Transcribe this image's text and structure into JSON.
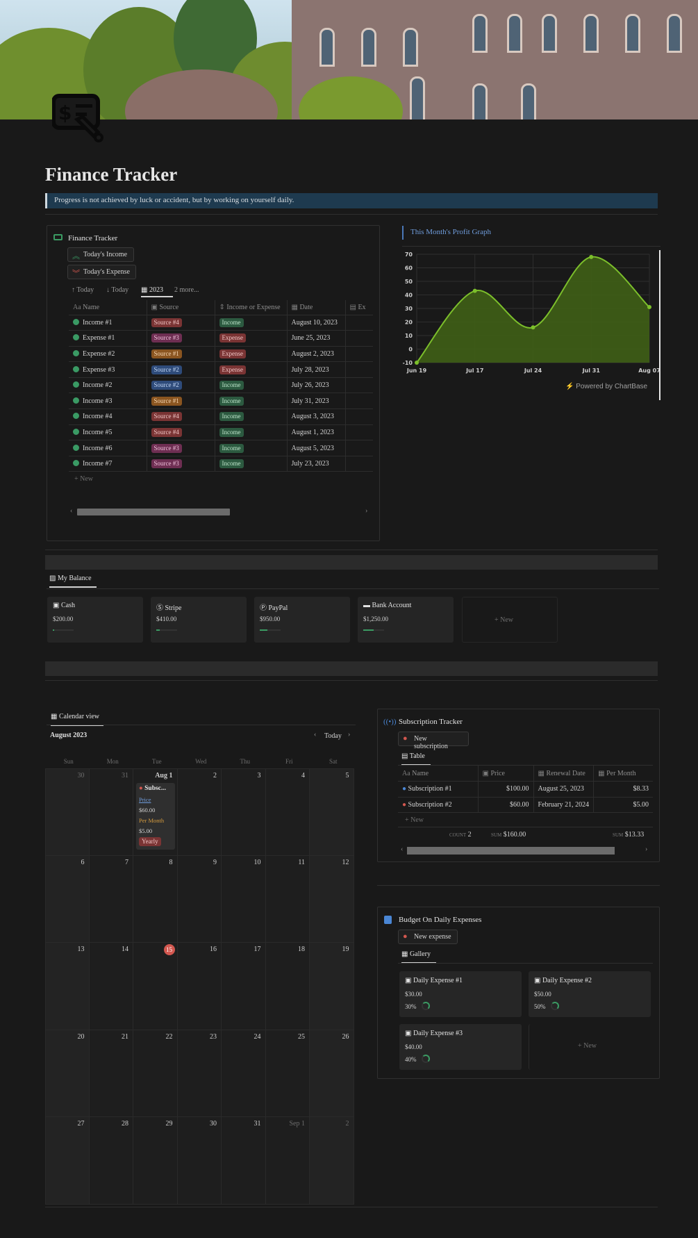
{
  "page": {
    "title": "Finance Tracker",
    "quote": "Progress is not achieved by luck or accident, but by working on yourself daily."
  },
  "finance": {
    "title": "Finance Tracker",
    "buttons": {
      "income": "Today's Income",
      "expense": "Today's Expense"
    },
    "views": {
      "sort1": "Today",
      "sort2": "Today",
      "year": "2023",
      "more": "2 more..."
    },
    "columns": [
      "Name",
      "Source",
      "Income or Expense",
      "Date",
      "Ex"
    ],
    "rows": [
      {
        "name": "Income #1",
        "source": "Source #4",
        "type": "Income",
        "date": "August 10, 2023"
      },
      {
        "name": "Expense #1",
        "source": "Source #3",
        "type": "Expense",
        "date": "June 25, 2023"
      },
      {
        "name": "Expense #2",
        "source": "Source #1",
        "type": "Expense",
        "date": "August 2, 2023"
      },
      {
        "name": "Expense #3",
        "source": "Source #2",
        "type": "Expense",
        "date": "July 28, 2023"
      },
      {
        "name": "Income #2",
        "source": "Source #2",
        "type": "Income",
        "date": "July 26, 2023"
      },
      {
        "name": "Income #3",
        "source": "Source #1",
        "type": "Income",
        "date": "July 31, 2023"
      },
      {
        "name": "Income #4",
        "source": "Source #4",
        "type": "Income",
        "date": "August 3, 2023"
      },
      {
        "name": "Income #5",
        "source": "Source #4",
        "type": "Income",
        "date": "August 1, 2023"
      },
      {
        "name": "Income #6",
        "source": "Source #3",
        "type": "Income",
        "date": "August 5, 2023"
      },
      {
        "name": "Income #7",
        "source": "Source #3",
        "type": "Income",
        "date": "July 23, 2023"
      }
    ],
    "new_label": "New"
  },
  "graph": {
    "title": "This Month's Profit Graph",
    "powered": "Powered by ChartBase"
  },
  "chart_data": {
    "type": "area",
    "x": [
      "Jun 19",
      "Jul 17",
      "Jul 24",
      "Jul 31",
      "Aug 07"
    ],
    "values": [
      -10,
      43,
      16,
      68,
      31
    ],
    "ylim": [
      -10,
      70
    ],
    "yticks": [
      70,
      60,
      50,
      40,
      30,
      20,
      10,
      0,
      -10
    ],
    "grid": true,
    "color": "#7cbf2b"
  },
  "balance": {
    "tab": "My Balance",
    "cards": [
      {
        "name": "Cash",
        "value": "$200.00",
        "fill": 0.08
      },
      {
        "name": "Stripe",
        "value": "$410.00",
        "fill": 0.16
      },
      {
        "name": "PayPal",
        "value": "$950.00",
        "fill": 0.38
      },
      {
        "name": "Bank Account",
        "value": "$1,250.00",
        "fill": 0.5
      }
    ],
    "new_label": "New"
  },
  "calendar": {
    "tab": "Calendar view",
    "month": "August 2023",
    "today": "Today",
    "weekdays": [
      "Sun",
      "Mon",
      "Tue",
      "Wed",
      "Thu",
      "Fri",
      "Sat"
    ],
    "weeks": [
      [
        "30",
        "31",
        "Aug 1",
        "2",
        "3",
        "4",
        "5"
      ],
      [
        "6",
        "7",
        "8",
        "9",
        "10",
        "11",
        "12"
      ],
      [
        "13",
        "14",
        "15",
        "16",
        "17",
        "18",
        "19"
      ],
      [
        "20",
        "21",
        "22",
        "23",
        "24",
        "25",
        "26"
      ],
      [
        "27",
        "28",
        "29",
        "30",
        "31",
        "Sep 1",
        "2"
      ]
    ],
    "event": {
      "title": "Subsc...",
      "price_label": "Price",
      "price": "$60.00",
      "pm_label": "Per Month",
      "pm": "$5.00",
      "tag": "Yearly"
    }
  },
  "subs": {
    "title": "Subscription Tracker",
    "new_button": "New subscription",
    "view": "Table",
    "columns": [
      "Name",
      "Price",
      "Renewal Date",
      "Per Month"
    ],
    "rows": [
      {
        "name": "Subscription #1",
        "price": "$100.00",
        "renewal": "August 25, 2023",
        "pm": "$8.33"
      },
      {
        "name": "Subscription #2",
        "price": "$60.00",
        "renewal": "February 21, 2024",
        "pm": "$5.00"
      }
    ],
    "new_label": "New",
    "count_label": "COUNT",
    "count": "2",
    "sum_label": "SUM",
    "sum_price": "$160.00",
    "sum_pm": "$13.33"
  },
  "budget": {
    "title": "Budget On Daily Expenses",
    "new_button": "New expense",
    "view": "Gallery",
    "cards": [
      {
        "name": "Daily Expense #1",
        "value": "$30.00",
        "pct": "30%"
      },
      {
        "name": "Daily Expense #2",
        "value": "$50.00",
        "pct": "50%"
      },
      {
        "name": "Daily Expense #3",
        "value": "$40.00",
        "pct": "40%"
      }
    ],
    "new_label": "New"
  }
}
